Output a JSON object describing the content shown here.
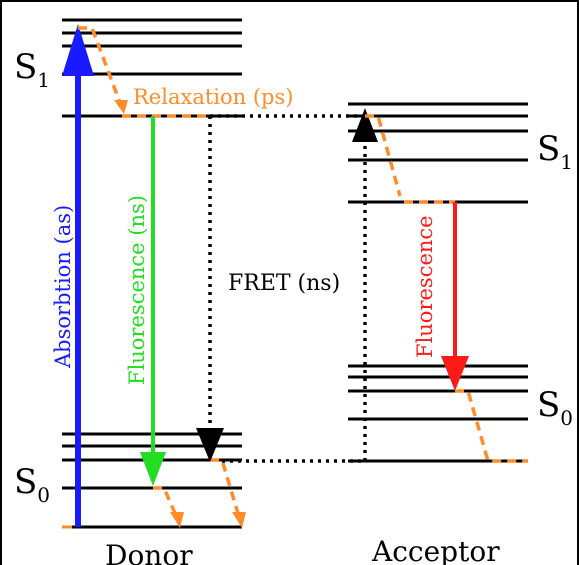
{
  "donor": {
    "s1_label": "S",
    "s1_sub": "1",
    "s0_label": "S",
    "s0_sub": "0",
    "name": "Donor",
    "absorption_label": "Absorbtion (as)",
    "fluorescence_label": "Fluorescence (ns)"
  },
  "acceptor": {
    "s1_label": "S",
    "s1_sub": "1",
    "s0_label": "S",
    "s0_sub": "0",
    "name": "Acceptor",
    "fluorescence_label": "Fluorescence"
  },
  "relaxation_label": "Relaxation (ps)",
  "fret_label": "FRET (ns)",
  "colors": {
    "absorption": "#1a1aff",
    "donor_fluorescence": "#22dd22",
    "acceptor_fluorescence": "#ff1a1a",
    "relaxation": "#ff8c2a",
    "level": "#000000"
  }
}
